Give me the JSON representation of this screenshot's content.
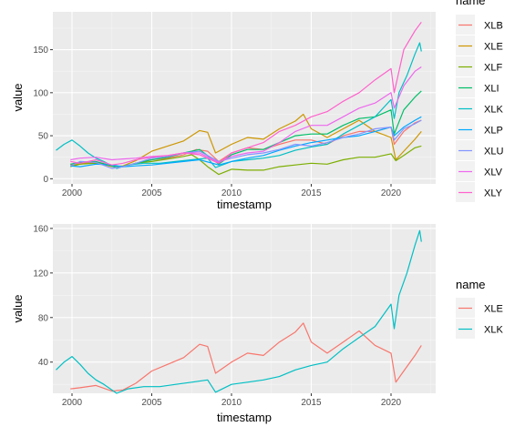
{
  "chart_data": [
    {
      "type": "line",
      "xlabel": "timestamp",
      "ylabel": "value",
      "xlim": [
        1998.8,
        2022.8
      ],
      "ylim": [
        -6,
        194
      ],
      "x_ticks": [
        2000,
        2005,
        2010,
        2015,
        2020
      ],
      "y_ticks": [
        0,
        50,
        100,
        150
      ],
      "legend_title": "name",
      "legend_position": "right",
      "grid": true,
      "series": [
        {
          "name": "XLB",
          "color": "#F8766D",
          "x": [
            1999.9,
            2000.5,
            2001.5,
            2002.5,
            2003.2,
            2004,
            2005,
            2006,
            2007,
            2007.8,
            2008.5,
            2009.2,
            2010,
            2011,
            2012,
            2013,
            2014,
            2015,
            2016,
            2017,
            2018,
            2019,
            2020,
            2020.2,
            2020.8,
            2021.5,
            2021.9
          ],
          "values": [
            17,
            18,
            19,
            15,
            14,
            18,
            22,
            24,
            28,
            34,
            32,
            20,
            30,
            36,
            34,
            40,
            45,
            45,
            40,
            50,
            55,
            55,
            60,
            40,
            55,
            65,
            68
          ]
        },
        {
          "name": "XLE",
          "color": "#CD9600",
          "x": [
            1999.9,
            2000.5,
            2001.5,
            2002.5,
            2003.2,
            2004,
            2005,
            2006,
            2007,
            2008,
            2008.5,
            2009,
            2010,
            2011,
            2012,
            2013,
            2014,
            2014.5,
            2015,
            2016,
            2017,
            2018,
            2019,
            2020,
            2020.3,
            2020.8,
            2021.5,
            2021.9
          ],
          "values": [
            16,
            17,
            19,
            14,
            15,
            21,
            32,
            38,
            44,
            56,
            54,
            30,
            40,
            48,
            46,
            58,
            67,
            75,
            58,
            48,
            58,
            68,
            55,
            48,
            22,
            32,
            46,
            55
          ]
        },
        {
          "name": "XLF",
          "color": "#7CAE00",
          "x": [
            1999.9,
            2000.5,
            2001.5,
            2002.5,
            2003.2,
            2004,
            2005,
            2006,
            2007,
            2007.5,
            2008,
            2008.5,
            2009.2,
            2010,
            2011,
            2012,
            2013,
            2014,
            2015,
            2016,
            2017,
            2018,
            2019,
            2020,
            2020.3,
            2020.8,
            2021.5,
            2021.9
          ],
          "values": [
            14,
            17,
            18,
            15,
            14,
            18,
            20,
            23,
            26,
            28,
            22,
            14,
            5,
            11,
            10,
            10,
            14,
            16,
            18,
            17,
            22,
            25,
            25,
            29,
            21,
            27,
            36,
            38
          ]
        },
        {
          "name": "XLI",
          "color": "#00BE67",
          "x": [
            1999.9,
            2000.5,
            2001.5,
            2002.5,
            2003.2,
            2004,
            2005,
            2006,
            2007,
            2008,
            2009.2,
            2010,
            2011,
            2012,
            2013,
            2014,
            2015,
            2016,
            2017,
            2018,
            2019,
            2020,
            2020.2,
            2020.8,
            2021.5,
            2021.9
          ],
          "values": [
            17,
            19,
            20,
            15,
            14,
            18,
            22,
            25,
            30,
            34,
            17,
            28,
            34,
            34,
            42,
            50,
            52,
            52,
            62,
            70,
            72,
            80,
            52,
            80,
            95,
            102
          ]
        },
        {
          "name": "XLK",
          "color": "#00BFC4",
          "x": [
            1999.0,
            1999.5,
            2000.0,
            2000.5,
            2001.0,
            2001.5,
            2002.0,
            2002.8,
            2003.5,
            2004.5,
            2005.5,
            2006.5,
            2007.5,
            2008.5,
            2009.0,
            2010.0,
            2011.0,
            2012.0,
            2013.0,
            2014.0,
            2015.0,
            2016.0,
            2017.0,
            2018.0,
            2019.0,
            2020.0,
            2020.2,
            2020.5,
            2021.0,
            2021.5,
            2021.8,
            2021.9
          ],
          "values": [
            33,
            40,
            45,
            38,
            30,
            24,
            20,
            12,
            16,
            18,
            18,
            20,
            22,
            24,
            13,
            20,
            22,
            24,
            27,
            33,
            37,
            40,
            52,
            62,
            72,
            92,
            70,
            100,
            120,
            145,
            158,
            148
          ]
        },
        {
          "name": "XLP",
          "color": "#00A9FF",
          "x": [
            1999.9,
            2000.5,
            2001.5,
            2002.5,
            2003.2,
            2004,
            2005,
            2006,
            2007,
            2008,
            2009.2,
            2010,
            2011,
            2012,
            2013,
            2014,
            2015,
            2016,
            2017,
            2018,
            2019,
            2020,
            2020.2,
            2020.8,
            2021.5,
            2021.9
          ],
          "values": [
            15,
            14,
            17,
            16,
            14,
            15,
            16,
            18,
            20,
            22,
            16,
            20,
            24,
            27,
            33,
            38,
            42,
            45,
            48,
            50,
            55,
            60,
            50,
            60,
            68,
            72
          ]
        },
        {
          "name": "XLU",
          "color": "#8494FF",
          "x": [
            1999.9,
            2000.5,
            2001.5,
            2002.5,
            2003.2,
            2004,
            2005,
            2006,
            2007,
            2008,
            2009.2,
            2010,
            2011,
            2012,
            2013,
            2014,
            2015,
            2016,
            2017,
            2018,
            2019,
            2020,
            2020.2,
            2020.8,
            2021.5,
            2021.9
          ],
          "values": [
            15,
            20,
            19,
            12,
            14,
            18,
            24,
            26,
            30,
            32,
            20,
            24,
            28,
            30,
            34,
            40,
            38,
            42,
            48,
            52,
            58,
            60,
            45,
            58,
            64,
            68
          ]
        },
        {
          "name": "XLV",
          "color": "#ED68ED",
          "x": [
            1999.9,
            2000.5,
            2001.5,
            2002.5,
            2003.2,
            2004,
            2005,
            2006,
            2007,
            2008,
            2009.2,
            2010,
            2011,
            2012,
            2013,
            2014,
            2015,
            2016,
            2017,
            2018,
            2019,
            2020,
            2020.2,
            2020.8,
            2021.5,
            2021.9
          ],
          "values": [
            22,
            24,
            25,
            22,
            23,
            24,
            26,
            27,
            30,
            30,
            19,
            26,
            30,
            32,
            42,
            55,
            62,
            62,
            72,
            82,
            88,
            100,
            82,
            108,
            125,
            130
          ]
        },
        {
          "name": "XLY",
          "color": "#FF61CC",
          "x": [
            1999.9,
            2000.5,
            2001.5,
            2002.5,
            2003.2,
            2004,
            2005,
            2006,
            2007,
            2008,
            2009.2,
            2010,
            2011,
            2012,
            2013,
            2014,
            2015,
            2016,
            2017,
            2018,
            2019,
            2020,
            2020.2,
            2020.8,
            2021.5,
            2021.9
          ],
          "values": [
            20,
            18,
            22,
            16,
            18,
            22,
            25,
            27,
            30,
            28,
            18,
            30,
            36,
            42,
            55,
            62,
            72,
            78,
            90,
            100,
            115,
            128,
            100,
            150,
            172,
            182
          ]
        }
      ]
    },
    {
      "type": "line",
      "xlabel": "timestamp",
      "ylabel": "value",
      "xlim": [
        1998.8,
        2022.8
      ],
      "ylim": [
        12,
        164
      ],
      "x_ticks": [
        2000,
        2005,
        2010,
        2015,
        2020
      ],
      "y_ticks": [
        40,
        80,
        120,
        160
      ],
      "legend_title": "name",
      "legend_position": "right",
      "grid": true,
      "series": [
        {
          "name": "XLE",
          "color": "#F8766D",
          "x": [
            1999.9,
            2000.5,
            2001.5,
            2002.5,
            2003.2,
            2004,
            2005,
            2006,
            2007,
            2008,
            2008.5,
            2009,
            2010,
            2011,
            2012,
            2013,
            2014,
            2014.5,
            2015,
            2016,
            2017,
            2018,
            2019,
            2020,
            2020.3,
            2020.8,
            2021.5,
            2021.9
          ],
          "values": [
            16,
            17,
            19,
            14,
            15,
            21,
            32,
            38,
            44,
            56,
            54,
            30,
            40,
            48,
            46,
            58,
            67,
            75,
            58,
            48,
            58,
            68,
            55,
            48,
            22,
            32,
            46,
            55
          ]
        },
        {
          "name": "XLK",
          "color": "#00BFC4",
          "x": [
            1999.0,
            1999.5,
            2000.0,
            2000.5,
            2001.0,
            2001.5,
            2002.0,
            2002.8,
            2003.5,
            2004.5,
            2005.5,
            2006.5,
            2007.5,
            2008.5,
            2009.0,
            2010.0,
            2011.0,
            2012.0,
            2013.0,
            2014.0,
            2015.0,
            2016.0,
            2017.0,
            2018.0,
            2019.0,
            2020.0,
            2020.2,
            2020.5,
            2021.0,
            2021.5,
            2021.8,
            2021.9
          ],
          "values": [
            33,
            40,
            45,
            38,
            30,
            24,
            20,
            12,
            16,
            18,
            18,
            20,
            22,
            24,
            13,
            20,
            22,
            24,
            27,
            33,
            37,
            40,
            52,
            62,
            72,
            92,
            70,
            100,
            120,
            145,
            158,
            148
          ]
        }
      ]
    }
  ]
}
